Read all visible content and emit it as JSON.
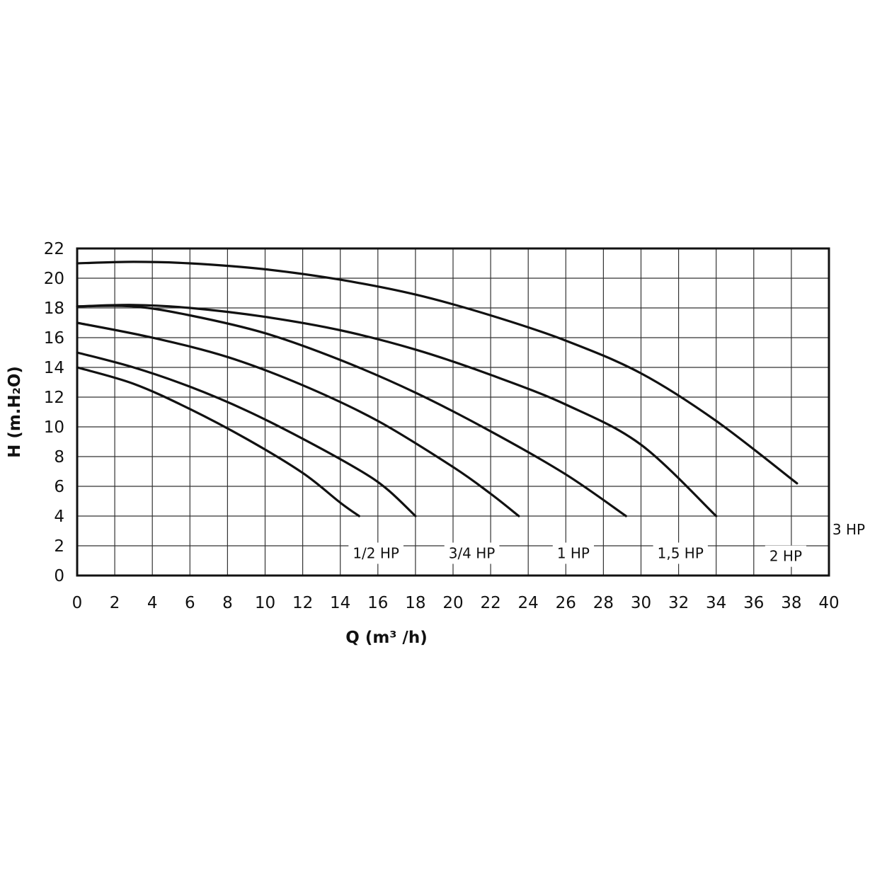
{
  "chart_data": {
    "type": "line",
    "title": "",
    "xlabel": "Q (m³ /h)",
    "ylabel": "H (m.H₂O)",
    "xlim": [
      0,
      40
    ],
    "ylim": [
      0,
      22
    ],
    "xticks": [
      0,
      2,
      4,
      6,
      8,
      10,
      12,
      14,
      16,
      18,
      20,
      22,
      24,
      26,
      28,
      30,
      32,
      34,
      36,
      38,
      40
    ],
    "yticks": [
      0,
      2,
      4,
      6,
      8,
      10,
      12,
      14,
      16,
      18,
      20,
      22
    ],
    "grid": true,
    "legend": "none",
    "series": [
      {
        "name": "1/2 HP",
        "x": [
          0,
          3,
          6,
          9,
          12,
          14,
          15
        ],
        "y": [
          14,
          12.9,
          11.2,
          9.2,
          6.9,
          4.9,
          4
        ]
      },
      {
        "name": "3/4 HP",
        "x": [
          0,
          3,
          6,
          9,
          12,
          15,
          16.5,
          18
        ],
        "y": [
          15,
          14,
          12.7,
          11.1,
          9.2,
          7.1,
          5.8,
          4
        ]
      },
      {
        "name": "1 HP",
        "x": [
          0,
          4,
          8,
          12,
          16,
          20,
          22,
          23.5
        ],
        "y": [
          17,
          16,
          14.7,
          12.8,
          10.4,
          7.3,
          5.5,
          4
        ]
      },
      {
        "name": "1,5 HP",
        "x": [
          0,
          3,
          6,
          10,
          14,
          18,
          22,
          26,
          29.2
        ],
        "y": [
          18.1,
          18.1,
          17.5,
          16.3,
          14.5,
          12.3,
          9.7,
          6.8,
          4
        ]
      },
      {
        "name": "2 HP",
        "x": [
          0,
          3,
          6,
          10,
          14,
          18,
          22,
          26,
          30,
          34
        ],
        "y": [
          18.1,
          18.2,
          18.0,
          17.4,
          16.5,
          15.2,
          13.5,
          11.5,
          8.8,
          4
        ]
      },
      {
        "name": "3 HP",
        "x": [
          0,
          3,
          6,
          10,
          14,
          18,
          22,
          26,
          30,
          34,
          38.3
        ],
        "y": [
          21,
          21.1,
          21,
          20.6,
          19.9,
          18.9,
          17.5,
          15.8,
          13.6,
          10.4,
          6.2
        ]
      }
    ],
    "labels": [
      {
        "text": "1/2 HP",
        "x": 15.9,
        "y": 1.5
      },
      {
        "text": "3/4 HP",
        "x": 21.0,
        "y": 1.5
      },
      {
        "text": "1 HP",
        "x": 26.4,
        "y": 1.5
      },
      {
        "text": "1,5 HP",
        "x": 32.1,
        "y": 1.5
      },
      {
        "text": "2 HP",
        "x": 37.7,
        "y": 1.3
      },
      {
        "text": "3 HP",
        "x": 41.8,
        "y": 3.1
      }
    ]
  }
}
